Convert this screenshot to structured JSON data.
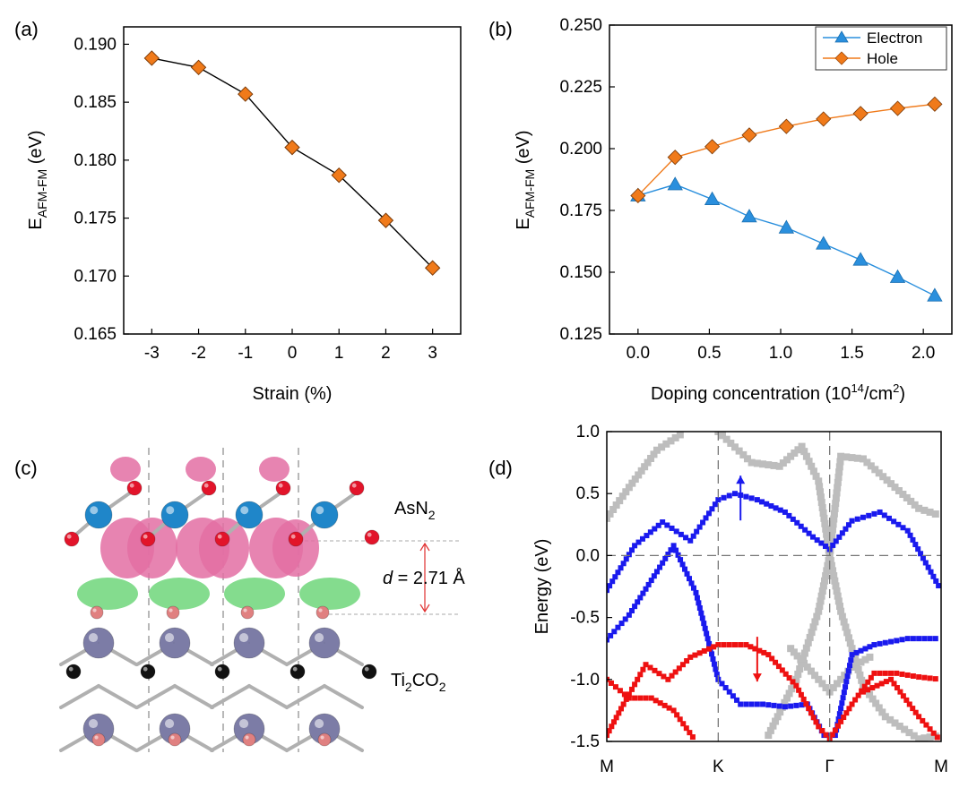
{
  "panels": {
    "a": {
      "tag": "(a)"
    },
    "b": {
      "tag": "(b)"
    },
    "c": {
      "tag": "(c)",
      "top_layer": "AsN",
      "top_sub": "2",
      "distance_italic": "d",
      "distance_value": " = 2.71 Å",
      "bottom_layer_1": "Ti",
      "bottom_sub_1": "2",
      "bottom_layer_2": "CO",
      "bottom_sub_2": "2"
    },
    "d": {
      "tag": "(d)"
    }
  },
  "colors": {
    "orange": "#f07a1a",
    "blue_marker": "#2a8fdd",
    "band_blue": "#1a1aee",
    "band_red": "#ee1111",
    "band_gray": "#bdbdbd",
    "pink": "#e36ea3",
    "green": "#6fd67a",
    "ti": "#7c7ca6",
    "n_red": "#e2142a",
    "as_blue": "#1f86c9"
  },
  "chart_data": [
    {
      "id": "a",
      "type": "line",
      "title": "",
      "xlabel": "Strain (%)",
      "ylabel_main": "E",
      "ylabel_sub": "AFM-FM",
      "ylabel_unit": " (eV)",
      "x": [
        -3,
        -2,
        -1,
        0,
        1,
        2,
        3
      ],
      "x_tick_labels": [
        "-3",
        "-2",
        "-1",
        "0",
        "1",
        "2",
        "3"
      ],
      "values": [
        0.1888,
        0.188,
        0.1857,
        0.1811,
        0.1787,
        0.1748,
        0.1707
      ],
      "xlim": [
        -3.6,
        3.6
      ],
      "ylim": [
        0.165,
        0.1915
      ],
      "yticks": [
        0.165,
        0.17,
        0.175,
        0.18,
        0.185,
        0.19
      ],
      "ytick_labels": [
        "0.165",
        "0.170",
        "0.175",
        "0.180",
        "0.185",
        "0.190"
      ]
    },
    {
      "id": "b",
      "type": "line",
      "xlabel_main": "Doping concentration (10",
      "xlabel_sup1": "14",
      "xlabel_mid": "/cm",
      "xlabel_sup2": "2",
      "xlabel_end": ")",
      "ylabel_main": "E",
      "ylabel_sub": "AFM-FM",
      "ylabel_unit": " (eV)",
      "xlim": [
        -0.2,
        2.2
      ],
      "ylim": [
        0.125,
        0.25
      ],
      "xticks": [
        0.0,
        0.5,
        1.0,
        1.5,
        2.0
      ],
      "xtick_labels": [
        "0.0",
        "0.5",
        "1.0",
        "1.5",
        "2.0"
      ],
      "yticks": [
        0.125,
        0.15,
        0.175,
        0.2,
        0.225,
        0.25
      ],
      "ytick_labels": [
        "0.125",
        "0.150",
        "0.175",
        "0.200",
        "0.225",
        "0.250"
      ],
      "legend_position": "top-right",
      "series": [
        {
          "name": "Electron",
          "marker": "triangle",
          "x": [
            0.0,
            0.26,
            0.52,
            0.78,
            1.04,
            1.3,
            1.56,
            1.82,
            2.08
          ],
          "values": [
            0.181,
            0.1855,
            0.1795,
            0.1725,
            0.168,
            0.1615,
            0.155,
            0.148,
            0.1405
          ]
        },
        {
          "name": "Hole",
          "marker": "diamond",
          "x": [
            0.0,
            0.26,
            0.52,
            0.78,
            1.04,
            1.3,
            1.56,
            1.82,
            2.08
          ],
          "values": [
            0.181,
            0.1965,
            0.2008,
            0.2055,
            0.209,
            0.212,
            0.2142,
            0.2163,
            0.218
          ]
        }
      ]
    },
    {
      "id": "d",
      "type": "scatter",
      "ylabel": "Energy (eV)",
      "xlim": [
        0,
        3
      ],
      "ylim": [
        -1.5,
        1.0
      ],
      "k_points": [
        0,
        1,
        2,
        3
      ],
      "k_labels": [
        "M",
        "K",
        "Γ",
        "M"
      ],
      "yticks": [
        -1.5,
        -1.0,
        -0.5,
        0.0,
        0.5,
        1.0
      ],
      "ytick_labels": [
        "-1.5",
        "-1.0",
        "-0.5",
        "0.0",
        "0.5",
        "1.0"
      ],
      "fermi_level": 0.0,
      "series": [
        {
          "name": "spin-up (blue)",
          "bands": [
            [
              [
                0,
                -0.28
              ],
              [
                0.25,
                0.08
              ],
              [
                0.5,
                0.27
              ],
              [
                0.75,
                0.12
              ],
              [
                1.0,
                0.45
              ],
              [
                1.15,
                0.5
              ],
              [
                1.35,
                0.45
              ],
              [
                1.6,
                0.35
              ],
              [
                1.85,
                0.15
              ],
              [
                2.0,
                0.05
              ],
              [
                2.2,
                0.28
              ],
              [
                2.45,
                0.35
              ],
              [
                2.7,
                0.2
              ],
              [
                3.0,
                -0.28
              ]
            ],
            [
              [
                0,
                -0.68
              ],
              [
                0.2,
                -0.48
              ],
              [
                0.4,
                -0.2
              ],
              [
                0.6,
                0.08
              ],
              [
                0.8,
                -0.3
              ],
              [
                1.0,
                -1.0
              ],
              [
                1.2,
                -1.2
              ],
              [
                1.4,
                -1.2
              ],
              [
                1.6,
                -1.22
              ],
              [
                1.8,
                -1.2
              ],
              [
                1.95,
                -1.45
              ],
              [
                2.05,
                -1.45
              ],
              [
                2.2,
                -0.8
              ],
              [
                2.4,
                -0.72
              ],
              [
                2.7,
                -0.67
              ],
              [
                3.0,
                -0.67
              ]
            ]
          ]
        },
        {
          "name": "spin-down (red)",
          "bands": [
            [
              [
                0,
                -1.0
              ],
              [
                0.2,
                -1.15
              ],
              [
                0.4,
                -1.15
              ],
              [
                0.6,
                -1.25
              ],
              [
                0.8,
                -1.5
              ]
            ],
            [
              [
                0,
                -1.45
              ],
              [
                0.15,
                -1.2
              ],
              [
                0.35,
                -0.88
              ],
              [
                0.55,
                -1.0
              ],
              [
                0.75,
                -0.82
              ],
              [
                1.0,
                -0.72
              ],
              [
                1.25,
                -0.72
              ],
              [
                1.45,
                -0.8
              ],
              [
                1.7,
                -1.05
              ],
              [
                1.9,
                -1.38
              ],
              [
                2.0,
                -1.48
              ],
              [
                2.2,
                -1.2
              ],
              [
                2.4,
                -0.95
              ],
              [
                2.6,
                -0.95
              ],
              [
                2.8,
                -0.98
              ],
              [
                3.0,
                -1.0
              ]
            ],
            [
              [
                2.3,
                -1.1
              ],
              [
                2.55,
                -1.0
              ],
              [
                2.8,
                -1.3
              ],
              [
                3.0,
                -1.5
              ]
            ]
          ]
        },
        {
          "name": "projected (gray)",
          "bands": [
            [
              [
                0,
                0.3
              ],
              [
                0.2,
                0.55
              ],
              [
                0.45,
                0.85
              ],
              [
                0.7,
                1.0
              ]
            ],
            [
              [
                1.0,
                1.0
              ],
              [
                1.3,
                0.75
              ],
              [
                1.55,
                0.72
              ],
              [
                1.75,
                0.88
              ],
              [
                1.9,
                0.6
              ],
              [
                2.0,
                0.0
              ],
              [
                2.1,
                0.8
              ],
              [
                2.3,
                0.78
              ],
              [
                2.55,
                0.58
              ],
              [
                2.8,
                0.38
              ],
              [
                3.0,
                0.32
              ]
            ],
            [
              [
                1.65,
                -0.75
              ],
              [
                1.8,
                -0.9
              ],
              [
                2.0,
                -1.1
              ],
              [
                2.2,
                -0.9
              ],
              [
                2.4,
                -0.8
              ]
            ],
            [
              [
                1.45,
                -1.45
              ],
              [
                1.7,
                -1.0
              ],
              [
                1.9,
                -0.45
              ],
              [
                2.0,
                0.0
              ],
              [
                2.1,
                -0.45
              ],
              [
                2.3,
                -1.05
              ],
              [
                2.5,
                -1.3
              ],
              [
                2.8,
                -1.48
              ],
              [
                3.0,
                -1.45
              ]
            ]
          ]
        }
      ],
      "arrows": [
        {
          "band": "up",
          "k": 1.2,
          "e": 0.5
        },
        {
          "band": "down",
          "k": 1.35,
          "e": -0.8
        }
      ]
    }
  ]
}
